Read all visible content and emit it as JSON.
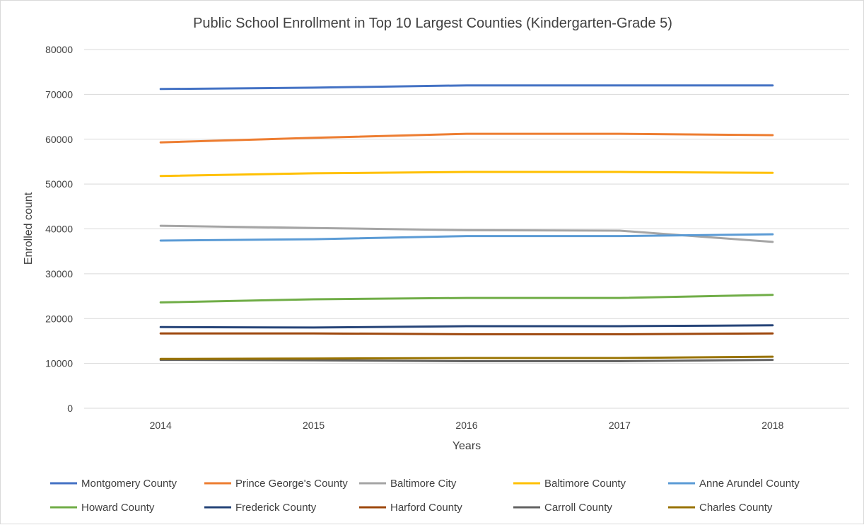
{
  "chart_data": {
    "type": "line",
    "title": "Public School Enrollment in Top 10 Largest Counties (Kindergarten-Grade 5)",
    "xlabel": "Years",
    "ylabel": "Enrolled count",
    "x": [
      "2014",
      "2015",
      "2016",
      "2017",
      "2018"
    ],
    "ylim": [
      0,
      80000
    ],
    "yticks": [
      "0",
      "10000",
      "20000",
      "30000",
      "40000",
      "50000",
      "60000",
      "70000",
      "80000"
    ],
    "grid": true,
    "legend_position": "bottom",
    "series": [
      {
        "name": "Montgomery County",
        "color": "#4472C4",
        "values": [
          71200,
          71500,
          72000,
          72000,
          72000
        ]
      },
      {
        "name": "Prince George's County",
        "color": "#ED7D31",
        "values": [
          59300,
          60300,
          61200,
          61200,
          60900
        ]
      },
      {
        "name": "Baltimore City",
        "color": "#A5A5A5",
        "values": [
          40700,
          40200,
          39700,
          39600,
          37100
        ]
      },
      {
        "name": "Baltimore County",
        "color": "#FFC000",
        "values": [
          51800,
          52400,
          52700,
          52700,
          52500
        ]
      },
      {
        "name": "Anne Arundel County",
        "color": "#5B9BD5",
        "values": [
          37400,
          37700,
          38400,
          38400,
          38800
        ]
      },
      {
        "name": "Howard County",
        "color": "#70AD47",
        "values": [
          23600,
          24300,
          24600,
          24600,
          25300
        ]
      },
      {
        "name": "Frederick County",
        "color": "#264478",
        "values": [
          18100,
          18000,
          18300,
          18300,
          18500
        ]
      },
      {
        "name": "Harford County",
        "color": "#9E480E",
        "values": [
          16700,
          16700,
          16500,
          16500,
          16700
        ]
      },
      {
        "name": "Carroll County",
        "color": "#636363",
        "values": [
          10800,
          10700,
          10500,
          10500,
          10800
        ]
      },
      {
        "name": "Charles County",
        "color": "#997300",
        "values": [
          11000,
          11100,
          11200,
          11200,
          11500
        ]
      }
    ]
  }
}
